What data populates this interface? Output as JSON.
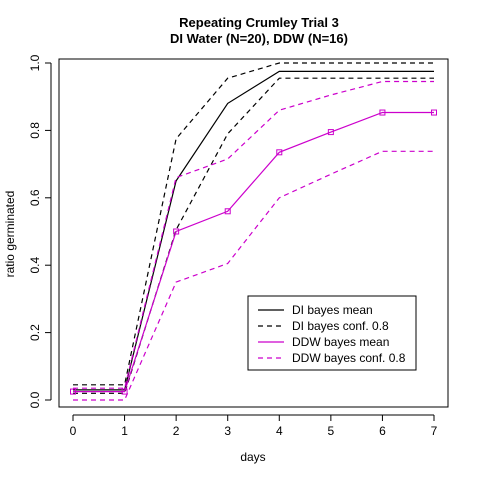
{
  "chart_data": {
    "type": "line",
    "title": "Repeating Crumley Trial 3",
    "subtitle": "DI Water (N=20), DDW (N=16)",
    "xlabel": "days",
    "ylabel": "ratio germinated",
    "xlim": [
      0,
      7
    ],
    "ylim": [
      0,
      1
    ],
    "x_ticks": [
      "0",
      "1",
      "2",
      "3",
      "4",
      "5",
      "6",
      "7"
    ],
    "y_ticks": [
      "0.0",
      "0.2",
      "0.4",
      "0.6",
      "0.8",
      "1.0"
    ],
    "grid": false,
    "legend_position": "bottom-right",
    "x": [
      0,
      1,
      2,
      3,
      4,
      5,
      6,
      7
    ],
    "series": [
      {
        "name": "DI bayes mean",
        "color": "#000000",
        "dash": "solid",
        "markers": false,
        "values": [
          0.03,
          0.03,
          0.65,
          0.88,
          0.975,
          0.975,
          0.975,
          0.975
        ]
      },
      {
        "name": "DI bayes conf. 0.8",
        "color": "#000000",
        "dash": "dashed",
        "markers": false,
        "values": [
          0.045,
          0.045,
          0.775,
          0.955,
          1.0,
          1.0,
          1.0,
          1.0
        ]
      },
      {
        "name": "",
        "color": "#000000",
        "dash": "dashed",
        "markers": false,
        "values": [
          0.02,
          0.02,
          0.505,
          0.79,
          0.955,
          0.955,
          0.955,
          0.955
        ]
      },
      {
        "name": "DDW bayes mean",
        "color": "#cc00cc",
        "dash": "solid",
        "markers": true,
        "values": [
          0.025,
          0.025,
          0.5,
          0.56,
          0.735,
          0.795,
          0.853,
          0.853
        ]
      },
      {
        "name": "DDW bayes conf. 0.8",
        "color": "#cc00cc",
        "dash": "dashed",
        "markers": false,
        "values": [
          0.035,
          0.035,
          0.66,
          0.715,
          0.86,
          0.905,
          0.945,
          0.945
        ]
      },
      {
        "name": "",
        "color": "#cc00cc",
        "dash": "dashed",
        "markers": false,
        "values": [
          0.0,
          0.0,
          0.35,
          0.405,
          0.6,
          0.67,
          0.738,
          0.738
        ]
      }
    ]
  }
}
